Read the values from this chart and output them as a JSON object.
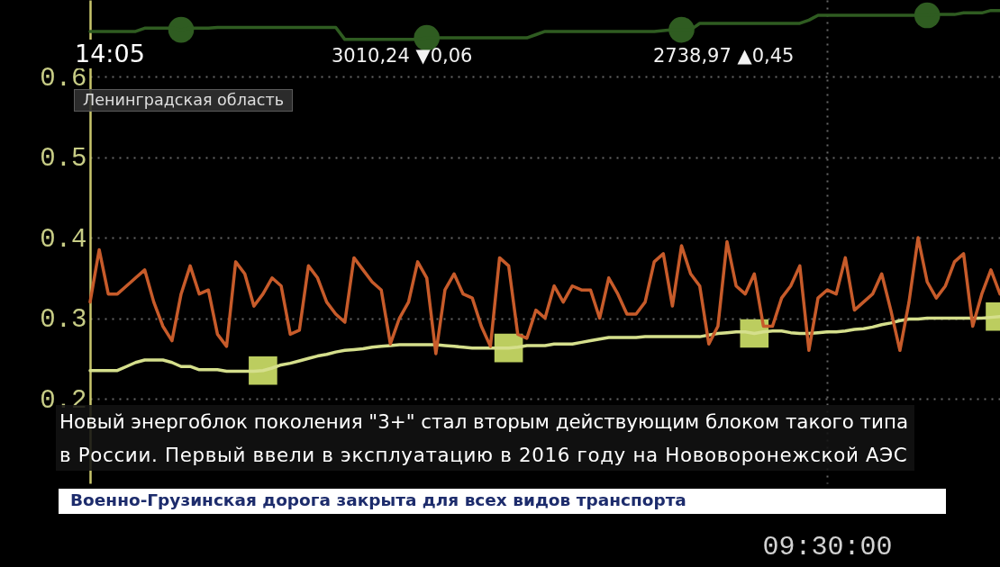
{
  "chart_data": {
    "type": "line",
    "categories": [
      null,
      null,
      null,
      null,
      null,
      null,
      null,
      null,
      null,
      null,
      null,
      null,
      null,
      null,
      null,
      null,
      null,
      null,
      null,
      null,
      null,
      null,
      null,
      null,
      null,
      null,
      null,
      null,
      null,
      null,
      null,
      null,
      null,
      null,
      null,
      null,
      null,
      null,
      null,
      null,
      null,
      null,
      null,
      null,
      null,
      null,
      null,
      null,
      null,
      null,
      null,
      null,
      null,
      null,
      null,
      null,
      null,
      null,
      null,
      null,
      null,
      null,
      null,
      null,
      null,
      null,
      null,
      null,
      null,
      null,
      null,
      null,
      null,
      null,
      null,
      null,
      null,
      null,
      null,
      null,
      null,
      "09:30:00",
      null,
      null,
      null,
      null,
      null,
      null,
      null,
      null,
      null,
      null,
      null,
      null,
      null,
      null,
      null,
      null,
      null,
      null,
      null
    ],
    "series": [
      {
        "type": "scatter",
        "marker": "circle",
        "color": "#2f5c21",
        "values": [
          null,
          null,
          null,
          null,
          null,
          null,
          null,
          null,
          null,
          null,
          0.658,
          null,
          null,
          null,
          null,
          null,
          null,
          null,
          null,
          null,
          null,
          null,
          null,
          null,
          null,
          null,
          null,
          null,
          null,
          null,
          null,
          null,
          null,
          null,
          null,
          null,
          null,
          0.648,
          null,
          null,
          null,
          null,
          null,
          null,
          null,
          null,
          null,
          null,
          null,
          null,
          null,
          null,
          null,
          null,
          null,
          null,
          null,
          null,
          null,
          null,
          null,
          null,
          null,
          null,
          null,
          0.658,
          null,
          null,
          null,
          null,
          null,
          null,
          null,
          null,
          null,
          null,
          null,
          null,
          null,
          null,
          null,
          null,
          null,
          null,
          null,
          null,
          null,
          null,
          null,
          null,
          null,
          null,
          0.676,
          null,
          null,
          null,
          null,
          null,
          null,
          null,
          null
        ]
      },
      {
        "color": "#2f5c21",
        "values": [
          0.656,
          0.656,
          0.656,
          0.656,
          0.656,
          0.656,
          0.66,
          0.66,
          0.66,
          0.66,
          0.658,
          0.66,
          0.66,
          0.66,
          0.661,
          0.661,
          0.661,
          0.661,
          0.661,
          0.661,
          0.661,
          0.661,
          0.661,
          0.661,
          0.661,
          0.661,
          0.661,
          0.661,
          0.646,
          0.646,
          0.646,
          0.646,
          0.646,
          0.646,
          0.646,
          0.646,
          0.646,
          0.648,
          0.648,
          0.648,
          0.648,
          0.648,
          0.648,
          0.648,
          0.648,
          0.648,
          0.648,
          0.648,
          0.648,
          0.652,
          0.656,
          0.656,
          0.656,
          0.656,
          0.656,
          0.656,
          0.656,
          0.656,
          0.656,
          0.656,
          0.656,
          0.656,
          0.656,
          0.657,
          0.658,
          0.658,
          0.658,
          0.666,
          0.666,
          0.666,
          0.666,
          0.666,
          0.666,
          0.666,
          0.666,
          0.666,
          0.666,
          0.666,
          0.666,
          0.67,
          0.676,
          0.676,
          0.676,
          0.676,
          0.676,
          0.676,
          0.676,
          0.676,
          0.676,
          0.676,
          0.676,
          0.676,
          0.676,
          0.677,
          0.677,
          0.677,
          0.679,
          0.679,
          0.679,
          0.682,
          0.682
        ]
      },
      {
        "type": "scatter",
        "marker": "square",
        "color": "#bccd5f",
        "values": [
          null,
          null,
          null,
          null,
          null,
          null,
          null,
          null,
          null,
          null,
          null,
          null,
          null,
          null,
          null,
          null,
          null,
          null,
          null,
          0.235,
          null,
          null,
          null,
          null,
          null,
          null,
          null,
          null,
          null,
          null,
          null,
          null,
          null,
          null,
          null,
          null,
          null,
          null,
          null,
          null,
          null,
          null,
          null,
          null,
          null,
          null,
          0.263,
          null,
          null,
          null,
          null,
          null,
          null,
          null,
          null,
          null,
          null,
          null,
          null,
          null,
          null,
          null,
          null,
          null,
          null,
          null,
          null,
          null,
          null,
          null,
          null,
          null,
          null,
          0.281,
          null,
          null,
          null,
          null,
          null,
          null,
          null,
          null,
          null,
          null,
          null,
          null,
          null,
          null,
          null,
          null,
          null,
          null,
          null,
          null,
          null,
          null,
          null,
          null,
          null,
          null,
          0.302
        ]
      },
      {
        "color": "#d5df8c",
        "values": [
          0.235,
          0.235,
          0.235,
          0.235,
          0.24,
          0.245,
          0.248,
          0.248,
          0.248,
          0.245,
          0.24,
          0.24,
          0.236,
          0.236,
          0.236,
          0.234,
          0.234,
          0.234,
          0.234,
          0.235,
          0.238,
          0.242,
          0.244,
          0.247,
          0.25,
          0.253,
          0.255,
          0.258,
          0.26,
          0.261,
          0.262,
          0.264,
          0.265,
          0.266,
          0.267,
          0.267,
          0.267,
          0.267,
          0.267,
          0.266,
          0.265,
          0.264,
          0.263,
          0.263,
          0.263,
          0.263,
          0.263,
          0.264,
          0.266,
          0.266,
          0.266,
          0.268,
          0.268,
          0.268,
          0.27,
          0.272,
          0.274,
          0.276,
          0.276,
          0.276,
          0.276,
          0.277,
          0.277,
          0.277,
          0.277,
          0.277,
          0.277,
          0.277,
          0.279,
          0.281,
          0.282,
          0.283,
          0.283,
          0.281,
          0.283,
          0.284,
          0.284,
          0.282,
          0.281,
          0.281,
          0.282,
          0.283,
          0.283,
          0.284,
          0.286,
          0.287,
          0.289,
          0.292,
          0.294,
          0.297,
          0.299,
          0.299,
          0.3,
          0.3,
          0.3,
          0.3,
          0.3,
          0.3,
          0.3,
          0.301,
          0.302
        ]
      },
      {
        "color": "#c75b2a",
        "values": [
          0.32,
          0.385,
          0.33,
          0.33,
          0.34,
          0.35,
          0.36,
          0.32,
          0.29,
          0.272,
          0.33,
          0.365,
          0.33,
          0.335,
          0.28,
          0.265,
          0.37,
          0.355,
          0.315,
          0.33,
          0.35,
          0.34,
          0.28,
          0.285,
          0.365,
          0.35,
          0.32,
          0.305,
          0.295,
          0.375,
          0.36,
          0.345,
          0.335,
          0.268,
          0.3,
          0.32,
          0.37,
          0.35,
          0.256,
          0.335,
          0.355,
          0.33,
          0.325,
          0.29,
          0.265,
          0.375,
          0.365,
          0.28,
          0.275,
          0.31,
          0.3,
          0.34,
          0.32,
          0.34,
          0.335,
          0.335,
          0.3,
          0.35,
          0.33,
          0.305,
          0.305,
          0.32,
          0.37,
          0.38,
          0.315,
          0.39,
          0.355,
          0.34,
          0.268,
          0.29,
          0.395,
          0.34,
          0.33,
          0.355,
          0.29,
          0.29,
          0.325,
          0.34,
          0.365,
          0.26,
          0.325,
          0.335,
          0.33,
          0.375,
          0.31,
          0.32,
          0.33,
          0.355,
          0.31,
          0.26,
          0.32,
          0.4,
          0.345,
          0.325,
          0.34,
          0.37,
          0.38,
          0.29,
          0.33,
          0.36,
          0.33
        ]
      }
    ],
    "ylim": [
      0.095,
      0.695
    ],
    "yticks": [
      0.2,
      0.3,
      0.4,
      0.5,
      0.6
    ],
    "grid": true,
    "annotations": [
      "14:05",
      "3010,24 ▼0,06",
      "2738,97 ▲0,45",
      "Ленинградская область",
      "Новый энергоблок поколения \"3+\" стал вторым действующим блоком такого типа",
      "в России. Первый ввели в эксплуатацию в 2016 году на Нововоронежской АЭС",
      "Военно-Грузинская дорога закрыта для всех видов транспорта"
    ]
  }
}
